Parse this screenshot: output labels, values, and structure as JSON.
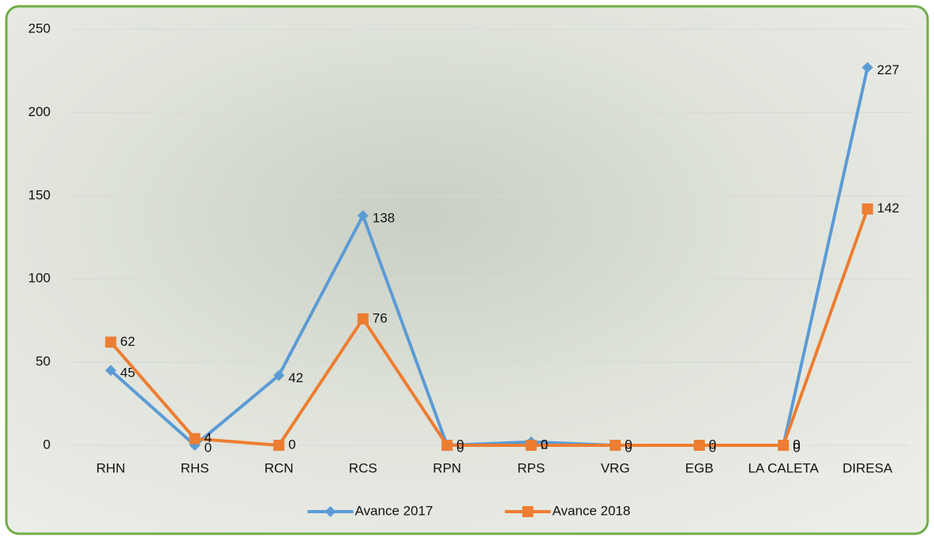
{
  "chart_data": {
    "type": "line",
    "categories": [
      "RHN",
      "RHS",
      "RCN",
      "RCS",
      "RPN",
      "RPS",
      "VRG",
      "EGB",
      "LA CALETA",
      "DIRESA"
    ],
    "series": [
      {
        "name": "Avance 2017",
        "color": "#5b9bd5",
        "marker": "diamond",
        "values": [
          45,
          0,
          42,
          138,
          0,
          2,
          0,
          0,
          0,
          227
        ]
      },
      {
        "name": "Avance 2018",
        "color": "#ed7d31",
        "marker": "square",
        "values": [
          62,
          4,
          0,
          76,
          0,
          0,
          0,
          0,
          0,
          142
        ]
      }
    ],
    "ylim": [
      0,
      250
    ],
    "yticks": [
      0,
      50,
      100,
      150,
      200,
      250
    ],
    "grid": true,
    "legend": "bottom"
  }
}
